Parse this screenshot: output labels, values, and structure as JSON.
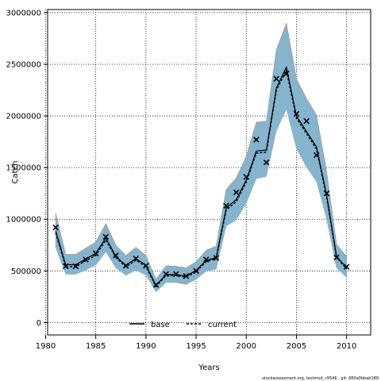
{
  "chart_data": {
    "type": "line",
    "xlabel": "Years",
    "ylabel": "Catch",
    "xlim": [
      1980.2,
      2012.4
    ],
    "ylim": [
      -120000,
      3030000
    ],
    "xticks": [
      1980,
      1985,
      1990,
      1995,
      2000,
      2005,
      2010
    ],
    "yticks": [
      0,
      500000,
      1000000,
      1500000,
      2000000,
      2500000,
      3000000
    ],
    "xtick_labels": [
      "1980",
      "1985",
      "1990",
      "1995",
      "2000",
      "2005",
      "2010"
    ],
    "ytick_labels": [
      "0",
      "500000",
      "1000000",
      "1500000",
      "2000000",
      "2500000",
      "3000000"
    ],
    "grid": true,
    "legend_position": "bottom-center",
    "footer": "stockassessment.org, testmvd, r9546 , git: 660a0bbab189",
    "colors": {
      "base_band": "#a8a8a8",
      "base_line": "#000000",
      "current_band": "#7fb6d6",
      "current_line": "#000000",
      "observed": "#000000",
      "grid": "#000000"
    },
    "x": [
      1981,
      1982,
      1983,
      1984,
      1985,
      1986,
      1987,
      1988,
      1989,
      1990,
      1991,
      1992,
      1993,
      1994,
      1995,
      1996,
      1997,
      1998,
      1999,
      2000,
      2001,
      2002,
      2003,
      2004,
      2005,
      2006,
      2007,
      2008,
      2009,
      2010
    ],
    "observed": {
      "name": "observed",
      "marker": "x",
      "values": [
        920000,
        545000,
        545000,
        610000,
        670000,
        830000,
        650000,
        550000,
        620000,
        550000,
        365000,
        470000,
        470000,
        450000,
        500000,
        610000,
        625000,
        1130000,
        1260000,
        1410000,
        1770000,
        1550000,
        2360000,
        2410000,
        2020000,
        1950000,
        1620000,
        1250000,
        630000,
        540000
      ]
    },
    "series": [
      {
        "name": "base",
        "line_style": "solid",
        "values": [
          890000,
          560000,
          560000,
          615000,
          670000,
          820000,
          640000,
          555000,
          620000,
          555000,
          360000,
          465000,
          465000,
          450000,
          505000,
          600000,
          630000,
          1110000,
          1190000,
          1380000,
          1660000,
          1670000,
          2270000,
          2470000,
          2000000,
          1850000,
          1700000,
          1240000,
          640000,
          530000
        ],
        "lower": [
          730000,
          470000,
          470000,
          510000,
          560000,
          690000,
          530000,
          460000,
          510000,
          460000,
          300000,
          390000,
          390000,
          370000,
          420000,
          500000,
          520000,
          940000,
          1000000,
          1160000,
          1400000,
          1420000,
          1860000,
          2080000,
          1690000,
          1510000,
          1370000,
          1010000,
          530000,
          440000
        ],
        "upper": [
          1060000,
          660000,
          660000,
          720000,
          780000,
          960000,
          750000,
          650000,
          730000,
          650000,
          420000,
          550000,
          545000,
          530000,
          590000,
          700000,
          740000,
          1290000,
          1400000,
          1610000,
          1940000,
          1950000,
          2640000,
          2900000,
          2360000,
          2170000,
          2010000,
          1470000,
          760000,
          640000
        ]
      },
      {
        "name": "current",
        "line_style": "dashed",
        "values": [
          870000,
          540000,
          540000,
          600000,
          650000,
          800000,
          630000,
          540000,
          605000,
          540000,
          350000,
          455000,
          455000,
          440000,
          490000,
          590000,
          620000,
          1090000,
          1170000,
          1360000,
          1640000,
          1650000,
          2250000,
          2440000,
          1980000,
          1830000,
          1680000,
          1220000,
          630000,
          520000
        ],
        "lower": [
          720000,
          465000,
          465000,
          505000,
          555000,
          680000,
          525000,
          455000,
          505000,
          455000,
          295000,
          385000,
          385000,
          365000,
          415000,
          495000,
          515000,
          930000,
          990000,
          1150000,
          1390000,
          1410000,
          1850000,
          2060000,
          1680000,
          1500000,
          1360000,
          1000000,
          525000,
          435000
        ],
        "upper": [
          1040000,
          645000,
          645000,
          705000,
          765000,
          940000,
          735000,
          640000,
          715000,
          640000,
          415000,
          540000,
          535000,
          520000,
          580000,
          690000,
          730000,
          1270000,
          1380000,
          1590000,
          1920000,
          1930000,
          2610000,
          2860000,
          2330000,
          2150000,
          1990000,
          1450000,
          750000,
          630000
        ]
      }
    ]
  }
}
